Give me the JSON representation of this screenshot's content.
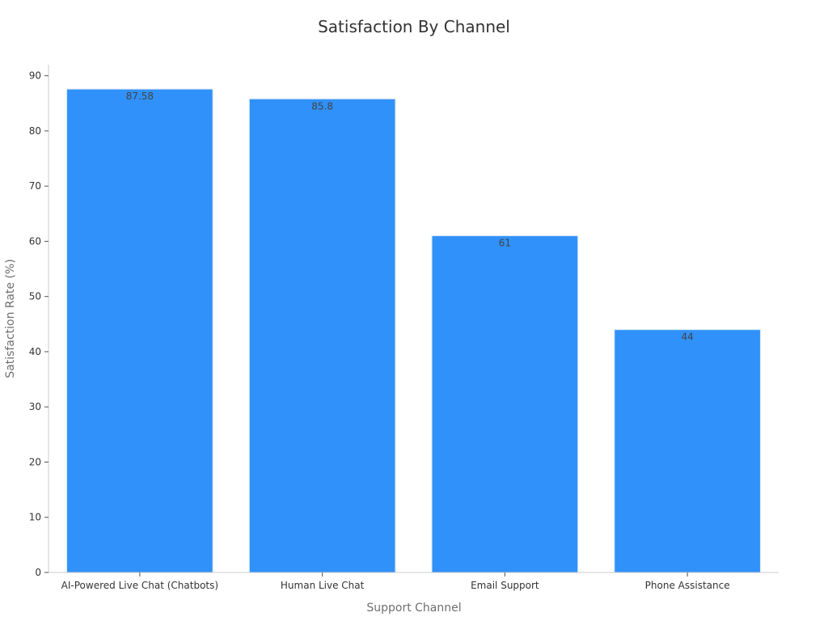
{
  "chart_data": {
    "type": "bar",
    "title": "Satisfaction By Channel",
    "xlabel": "Support Channel",
    "ylabel": "Satisfaction Rate (%)",
    "categories": [
      "AI-Powered Live Chat (Chatbots)",
      "Human Live Chat",
      "Email Support",
      "Phone Assistance"
    ],
    "values": [
      87.58,
      85.8,
      61,
      44
    ],
    "data_labels": [
      "87.58",
      "85.8",
      "61",
      "44"
    ],
    "ylim": [
      0,
      92
    ],
    "yticks": [
      0,
      10,
      20,
      30,
      40,
      50,
      60,
      70,
      80,
      90
    ],
    "grid": false,
    "legend": "none",
    "colors": {
      "bar": "#2f91f9",
      "bar_edge": "#d6e6f7",
      "axis": "#cccccc"
    }
  }
}
